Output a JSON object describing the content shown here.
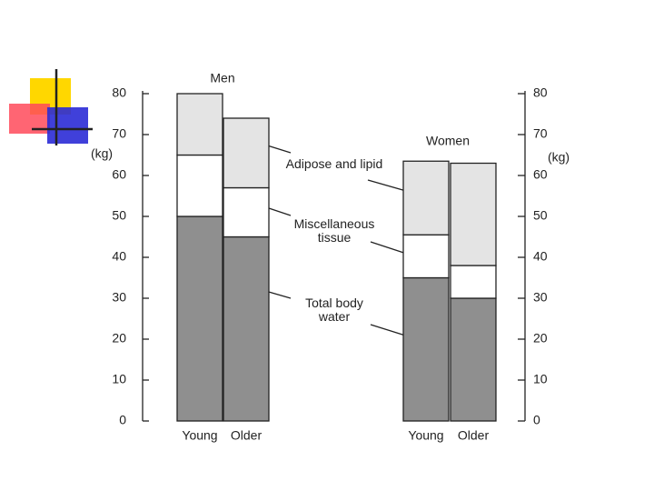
{
  "chart_data": {
    "type": "bar",
    "stacked": true,
    "groups": [
      {
        "name": "Men",
        "categories": [
          "Young",
          "Older"
        ]
      },
      {
        "name": "Women",
        "categories": [
          "Young",
          "Older"
        ]
      }
    ],
    "series": [
      {
        "name": "Total body water",
        "color": "#8f8f8f",
        "values": [
          50,
          45,
          35,
          30
        ]
      },
      {
        "name": "Miscellaneous tissue",
        "color": "#ffffff",
        "values": [
          15,
          12,
          10.5,
          8
        ]
      },
      {
        "name": "Adipose and lipid",
        "color": "#e4e4e4",
        "values": [
          15,
          17,
          18,
          25
        ]
      }
    ],
    "y_label": "(kg)",
    "ylim": [
      0,
      80
    ],
    "yticks": [
      0,
      10,
      20,
      30,
      40,
      50,
      60,
      70,
      80
    ],
    "y2_label": "(kg)",
    "y2lim": [
      0,
      80
    ],
    "y2ticks": [
      0,
      10,
      20,
      30,
      40,
      50,
      60,
      70,
      80
    ]
  }
}
